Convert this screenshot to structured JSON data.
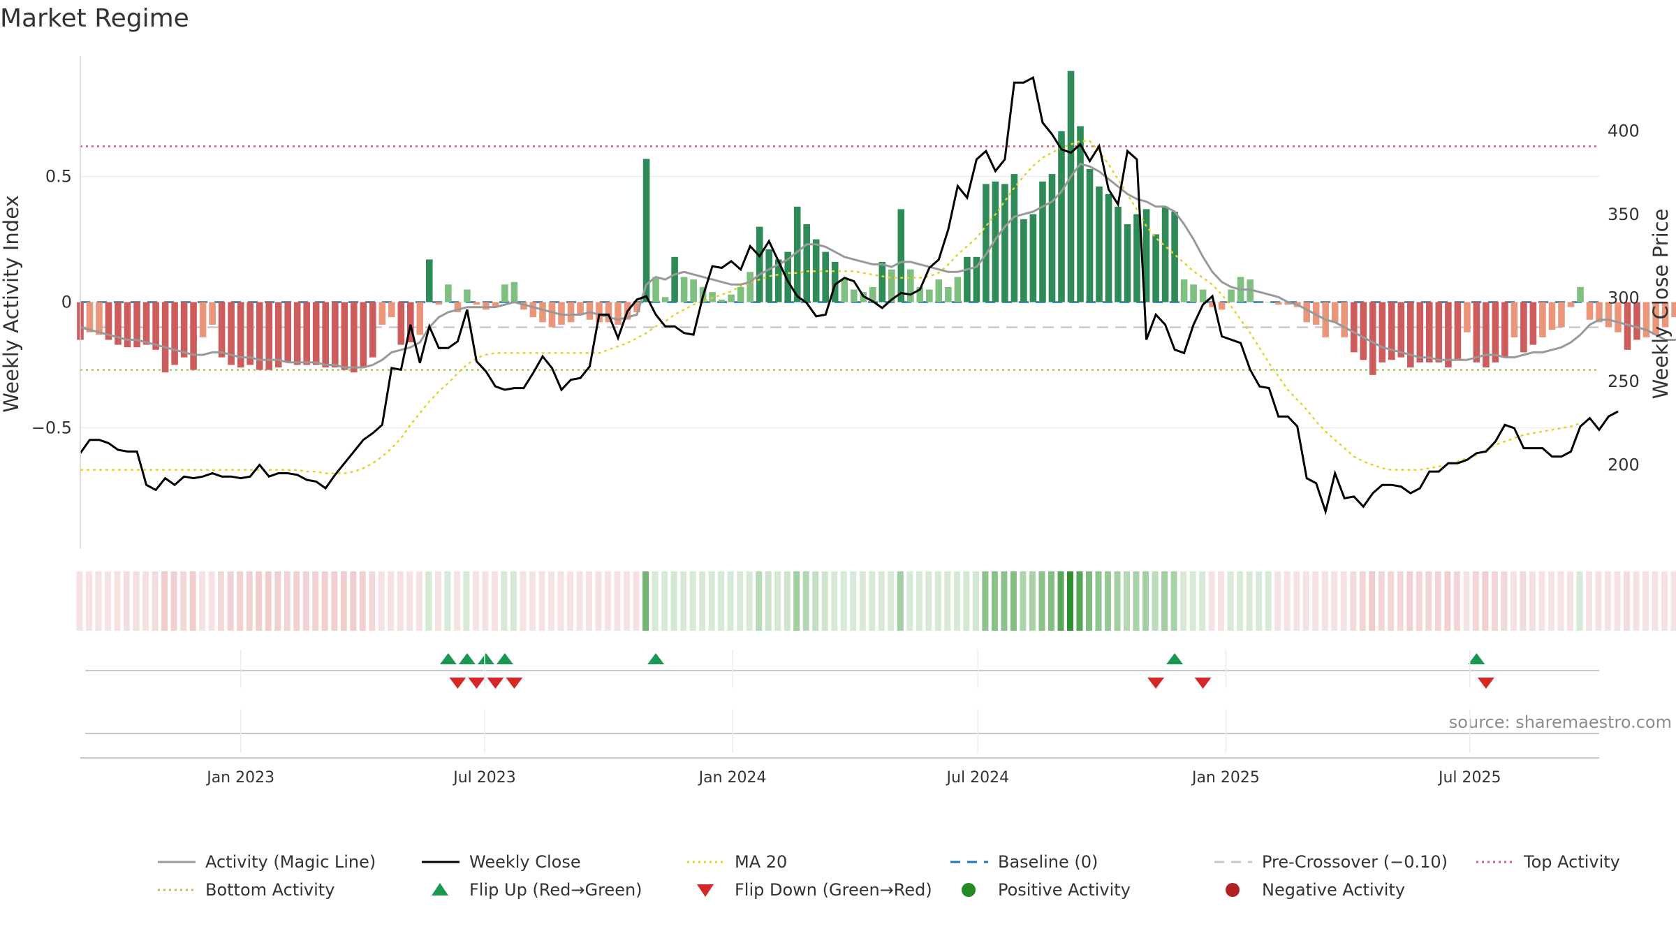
{
  "title": "Market Regime",
  "source": "source: sharemaestro.com",
  "colors": {
    "pos_dark": "#2e8b57",
    "pos_light": "#7fbf7f",
    "neg_dark": "#cd5c5c",
    "neg_light": "#e9967a",
    "magic": "#999999",
    "close": "#000000",
    "ma": "#e6d22e",
    "baseline": "#1f77b4",
    "pre": "#c8c8c8",
    "top": "#e0566e",
    "bottom": "#9acd5a",
    "flip_up": "#1a9850",
    "flip_down": "#d62728",
    "pos_dot": "#228b22",
    "neg_dot": "#b22222"
  },
  "chart_data": {
    "type": "bar",
    "title": "Market Regime",
    "ylabel": "Weekly Activity Index",
    "y2label": "Weekly Close Price",
    "ylim": [
      -0.98,
      0.98
    ],
    "y2lim": [
      150,
      445
    ],
    "yticks": [
      {
        "v": 0.5,
        "label": "0.5"
      },
      {
        "v": 0,
        "label": "0"
      },
      {
        "v": -0.5,
        "label": "−0.5"
      }
    ],
    "y2ticks": [
      {
        "v": 400,
        "label": "400"
      },
      {
        "v": 350,
        "label": "350"
      },
      {
        "v": 300,
        "label": "300"
      },
      {
        "v": 250,
        "label": "250"
      },
      {
        "v": 200,
        "label": "200"
      }
    ],
    "xlim": [
      "2022-09-04",
      "2025-10-05"
    ],
    "xticks": [
      {
        "date": "2023-01-01",
        "label": "Jan 2023"
      },
      {
        "date": "2023-07-01",
        "label": "Jul 2023"
      },
      {
        "date": "2024-01-01",
        "label": "Jan 2024"
      },
      {
        "date": "2024-07-01",
        "label": "Jul 2024"
      },
      {
        "date": "2025-01-01",
        "label": "Jan 2025"
      },
      {
        "date": "2025-07-01",
        "label": "Jul 2025"
      }
    ],
    "grid": true,
    "legend_position": "bottom",
    "start_date": "2022-09-04",
    "freq": "weekly",
    "activity": [
      -0.15,
      -0.12,
      -0.13,
      -0.15,
      -0.17,
      -0.18,
      -0.18,
      -0.17,
      -0.19,
      -0.28,
      -0.25,
      -0.22,
      -0.27,
      -0.14,
      -0.09,
      -0.22,
      -0.25,
      -0.26,
      -0.25,
      -0.27,
      -0.27,
      -0.26,
      -0.24,
      -0.25,
      -0.25,
      -0.25,
      -0.26,
      -0.26,
      -0.27,
      -0.28,
      -0.26,
      -0.22,
      -0.09,
      -0.06,
      -0.17,
      -0.16,
      -0.13,
      0.17,
      -0.01,
      0.07,
      -0.04,
      0.05,
      -0.01,
      -0.03,
      -0.02,
      0.07,
      0.08,
      -0.03,
      -0.06,
      -0.08,
      -0.1,
      -0.09,
      -0.08,
      -0.05,
      -0.07,
      -0.08,
      -0.08,
      -0.09,
      -0.07,
      -0.04,
      0.57,
      0.1,
      0.02,
      0.18,
      0.1,
      0.09,
      0.06,
      0.04,
      0.01,
      0.03,
      0.06,
      0.12,
      0.3,
      0.21,
      0.17,
      0.2,
      0.38,
      0.31,
      0.25,
      0.2,
      0.16,
      0.09,
      0.05,
      0.04,
      0.06,
      0.16,
      0.13,
      0.37,
      0.13,
      0.06,
      0.05,
      0.09,
      0.06,
      0.1,
      0.18,
      0.18,
      0.47,
      0.48,
      0.47,
      0.51,
      0.33,
      0.35,
      0.48,
      0.51,
      0.68,
      0.92,
      0.7,
      0.53,
      0.46,
      0.43,
      0.38,
      0.31,
      0.35,
      0.37,
      0.27,
      0.38,
      0.36,
      0.09,
      0.07,
      0.05,
      -0.02,
      -0.03,
      0.05,
      0.1,
      0.09,
      0.0,
      0.0,
      -0.01,
      -0.01,
      -0.02,
      -0.08,
      -0.09,
      -0.14,
      -0.08,
      -0.14,
      -0.2,
      -0.23,
      -0.29,
      -0.24,
      -0.23,
      -0.22,
      -0.26,
      -0.24,
      -0.24,
      -0.24,
      -0.26,
      -0.23,
      -0.12,
      -0.24,
      -0.26,
      -0.24,
      -0.22,
      -0.14,
      -0.2,
      -0.17,
      -0.14,
      -0.11,
      -0.1,
      -0.02,
      0.06,
      -0.07,
      -0.08,
      -0.1,
      -0.12,
      -0.19,
      -0.15,
      -0.14,
      -0.13,
      -0.1,
      -0.06,
      -0.1,
      -0.11,
      -0.14,
      -0.16,
      -0.05
    ],
    "magic": [
      -0.1,
      -0.11,
      -0.12,
      -0.13,
      -0.14,
      -0.15,
      -0.15,
      -0.16,
      -0.17,
      -0.18,
      -0.19,
      -0.2,
      -0.21,
      -0.21,
      -0.2,
      -0.2,
      -0.21,
      -0.22,
      -0.22,
      -0.23,
      -0.23,
      -0.23,
      -0.24,
      -0.24,
      -0.24,
      -0.24,
      -0.25,
      -0.25,
      -0.26,
      -0.26,
      -0.26,
      -0.25,
      -0.23,
      -0.2,
      -0.19,
      -0.18,
      -0.16,
      -0.1,
      -0.06,
      -0.04,
      -0.03,
      -0.02,
      -0.02,
      -0.02,
      -0.02,
      -0.01,
      0.0,
      -0.01,
      -0.02,
      -0.03,
      -0.04,
      -0.05,
      -0.05,
      -0.05,
      -0.04,
      -0.05,
      -0.06,
      -0.07,
      -0.06,
      -0.05,
      0.07,
      0.1,
      0.09,
      0.11,
      0.12,
      0.11,
      0.1,
      0.09,
      0.08,
      0.07,
      0.07,
      0.08,
      0.11,
      0.13,
      0.15,
      0.17,
      0.2,
      0.23,
      0.23,
      0.22,
      0.2,
      0.18,
      0.17,
      0.16,
      0.15,
      0.15,
      0.14,
      0.16,
      0.16,
      0.15,
      0.14,
      0.13,
      0.12,
      0.12,
      0.13,
      0.14,
      0.19,
      0.25,
      0.3,
      0.34,
      0.35,
      0.36,
      0.38,
      0.4,
      0.44,
      0.5,
      0.55,
      0.54,
      0.52,
      0.49,
      0.46,
      0.43,
      0.41,
      0.4,
      0.38,
      0.38,
      0.36,
      0.31,
      0.25,
      0.18,
      0.12,
      0.08,
      0.06,
      0.05,
      0.05,
      0.04,
      0.03,
      0.02,
      0.0,
      -0.01,
      -0.03,
      -0.05,
      -0.07,
      -0.08,
      -0.1,
      -0.12,
      -0.14,
      -0.16,
      -0.18,
      -0.19,
      -0.2,
      -0.21,
      -0.22,
      -0.22,
      -0.23,
      -0.23,
      -0.23,
      -0.23,
      -0.22,
      -0.21,
      -0.21,
      -0.22,
      -0.22,
      -0.21,
      -0.2,
      -0.2,
      -0.19,
      -0.18,
      -0.16,
      -0.13,
      -0.09,
      -0.07,
      -0.07,
      -0.08,
      -0.09,
      -0.1,
      -0.11,
      -0.13,
      -0.15,
      -0.15,
      -0.14,
      -0.14,
      -0.14,
      -0.14,
      -0.12
    ],
    "close": [
      207,
      215,
      215,
      213,
      209,
      208,
      208,
      188,
      185,
      192,
      188,
      193,
      192,
      193,
      195,
      193,
      193,
      192,
      193,
      200,
      193,
      195,
      195,
      194,
      191,
      190,
      186,
      194,
      201,
      208,
      215,
      219,
      224,
      258,
      257,
      284,
      261,
      283,
      270,
      270,
      274,
      293,
      262,
      256,
      247,
      245,
      246,
      246,
      255,
      265,
      258,
      245,
      251,
      252,
      259,
      290,
      290,
      276,
      292,
      299,
      301,
      290,
      283,
      283,
      279,
      278,
      301,
      319,
      318,
      322,
      317,
      331,
      325,
      334,
      322,
      310,
      301,
      297,
      289,
      290,
      308,
      312,
      310,
      301,
      298,
      294,
      299,
      303,
      302,
      305,
      318,
      323,
      341,
      367,
      360,
      383,
      388,
      376,
      383,
      429,
      429,
      432,
      405,
      398,
      389,
      387,
      392,
      382,
      391,
      365,
      356,
      388,
      383,
      275,
      290,
      284,
      269,
      267,
      284,
      296,
      301,
      277,
      275,
      273,
      257,
      247,
      246,
      229,
      229,
      223,
      192,
      189,
      172,
      195,
      180,
      181,
      175,
      183,
      188,
      188,
      187,
      183,
      186,
      196,
      196,
      201,
      201,
      203,
      207,
      208,
      214,
      224,
      222,
      210,
      210,
      210,
      205,
      205,
      208,
      223,
      228,
      221,
      229,
      232
    ],
    "ma20": [
      197,
      197,
      197,
      197,
      197,
      197,
      197,
      197,
      197,
      197,
      197,
      197,
      197,
      197,
      197,
      197,
      197,
      197,
      197,
      197,
      197,
      197,
      197,
      197,
      196,
      196,
      195,
      195,
      195,
      196,
      198,
      201,
      205,
      210,
      216,
      224,
      231,
      238,
      244,
      249,
      255,
      260,
      264,
      266,
      267,
      267,
      267,
      267,
      267,
      267,
      267,
      267,
      267,
      267,
      267,
      267,
      269,
      271,
      273,
      276,
      279,
      283,
      286,
      290,
      293,
      296,
      298,
      300,
      302,
      304,
      307,
      309,
      311,
      313,
      314,
      315,
      315,
      316,
      316,
      316,
      316,
      316,
      316,
      315,
      314,
      313,
      312,
      312,
      312,
      312,
      313,
      315,
      320,
      326,
      331,
      336,
      343,
      350,
      358,
      366,
      373,
      379,
      384,
      387,
      390,
      392,
      394,
      394,
      388,
      380,
      371,
      362,
      353,
      343,
      336,
      331,
      326,
      321,
      316,
      312,
      308,
      302,
      295,
      287,
      279,
      270,
      261,
      253,
      245,
      239,
      233,
      226,
      220,
      215,
      210,
      205,
      202,
      200,
      198,
      197,
      197,
      197,
      197,
      198,
      199,
      200,
      202,
      204,
      206,
      209,
      212,
      214,
      216,
      218,
      219,
      220,
      221,
      222,
      223,
      225
    ],
    "top": 0.62,
    "bottom": -0.27,
    "baseline": 0,
    "pre_crossover": -0.1,
    "series": [
      {
        "name": "Activity (Magic Line)",
        "key": "magic"
      },
      {
        "name": "Weekly Close",
        "key": "close"
      },
      {
        "name": "MA 20",
        "key": "ma20"
      }
    ],
    "heat_strip": "weekly activity color band (same values as activity)",
    "flip_up_dates": [
      "2023-06-04",
      "2023-06-18",
      "2023-07-02",
      "2023-07-16",
      "2023-11-05",
      "2024-11-24",
      "2025-07-06"
    ],
    "flip_down_dates": [
      "2023-06-11",
      "2023-06-25",
      "2023-07-09",
      "2023-07-23",
      "2024-11-10",
      "2024-12-15",
      "2025-07-13"
    ],
    "legend": [
      {
        "label": "Activity (Magic Line)",
        "kind": "line",
        "color": "#999999",
        "dash": ""
      },
      {
        "label": "Weekly Close",
        "kind": "line",
        "color": "#000000",
        "dash": ""
      },
      {
        "label": "MA 20",
        "kind": "line",
        "color": "#e6d22e",
        "dash": "dot"
      },
      {
        "label": "Baseline (0)",
        "kind": "line",
        "color": "#1f77b4",
        "dash": "dash"
      },
      {
        "label": "Pre-Crossover (−0.10)",
        "kind": "line",
        "color": "#c8c8c8",
        "dash": "dash"
      },
      {
        "label": "Top Activity",
        "kind": "line",
        "color": "#e0566e",
        "dash": "dot"
      },
      {
        "label": "Bottom Activity",
        "kind": "line",
        "color": "#9acd5a",
        "dash": "dot"
      },
      {
        "label": "Flip Up (Red→Green)",
        "kind": "tri-up",
        "color": "#1a9850",
        "dash": ""
      },
      {
        "label": "Flip Down (Green→Red)",
        "kind": "tri-down",
        "color": "#d62728",
        "dash": ""
      },
      {
        "label": "Positive Activity",
        "kind": "dot",
        "color": "#228b22",
        "dash": ""
      },
      {
        "label": "Negative Activity",
        "kind": "dot",
        "color": "#b22222",
        "dash": ""
      }
    ]
  }
}
